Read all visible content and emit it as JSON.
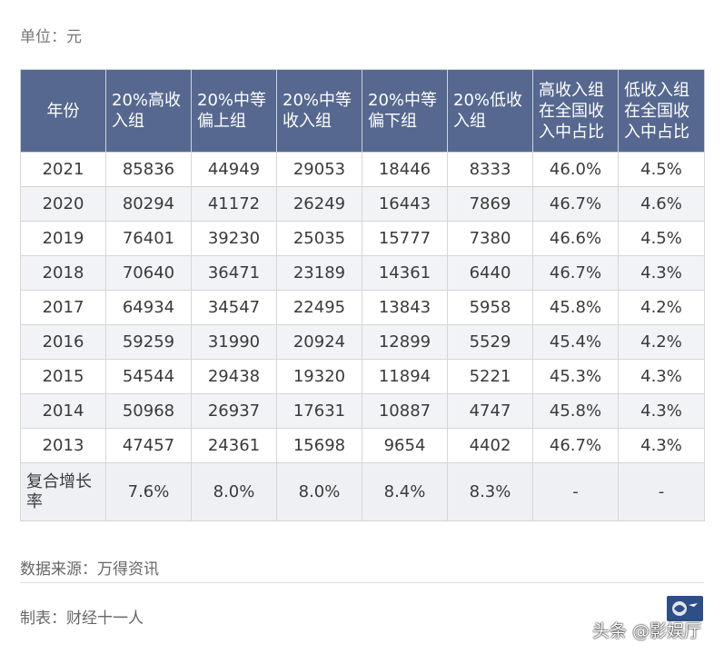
{
  "unit_label": "单位：元",
  "table": {
    "headers": [
      "年份",
      "20%高收入组",
      "20%中等偏上组",
      "20%中等收入组",
      "20%中等偏下组",
      "20%低收入组",
      "高收入组在全国收入中占比",
      "低收入组在全国收入中占比"
    ],
    "rows": [
      [
        "2021",
        "85836",
        "44949",
        "29053",
        "18446",
        "8333",
        "46.0%",
        "4.5%"
      ],
      [
        "2020",
        "80294",
        "41172",
        "26249",
        "16443",
        "7869",
        "46.7%",
        "4.6%"
      ],
      [
        "2019",
        "76401",
        "39230",
        "25035",
        "15777",
        "7380",
        "46.6%",
        "4.5%"
      ],
      [
        "2018",
        "70640",
        "36471",
        "23189",
        "14361",
        "6440",
        "46.7%",
        "4.3%"
      ],
      [
        "2017",
        "64934",
        "34547",
        "22495",
        "13843",
        "5958",
        "45.8%",
        "4.2%"
      ],
      [
        "2016",
        "59259",
        "31990",
        "20924",
        "12899",
        "5529",
        "45.4%",
        "4.2%"
      ],
      [
        "2015",
        "54544",
        "29438",
        "19320",
        "11894",
        "5221",
        "45.3%",
        "4.3%"
      ],
      [
        "2014",
        "50968",
        "26937",
        "17631",
        "10887",
        "4747",
        "45.8%",
        "4.3%"
      ],
      [
        "2013",
        "47457",
        "24361",
        "15698",
        "9654",
        "4402",
        "46.7%",
        "4.3%"
      ],
      [
        "复合增长率",
        "7.6%",
        "8.0%",
        "8.0%",
        "8.4%",
        "8.3%",
        "-",
        "-"
      ]
    ]
  },
  "source_label": "数据来源：万得资讯",
  "maker_label": "制表：财经十一人",
  "watermark": "头条 @影娱厅",
  "colors": {
    "header_bg": "#56688f",
    "alt_row_bg": "#f1f3f6"
  }
}
